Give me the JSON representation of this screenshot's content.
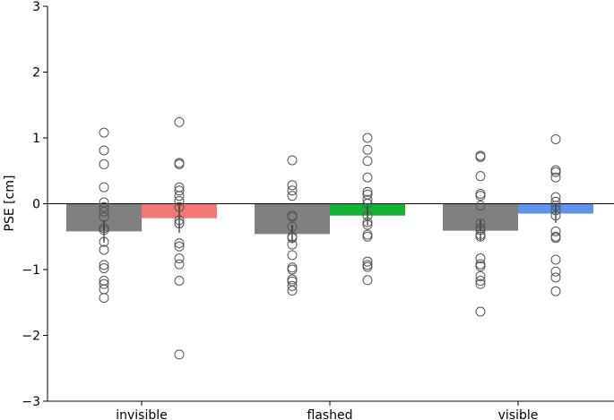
{
  "chart_data": {
    "type": "bar",
    "title": "",
    "xlabel": "",
    "ylabel": "PSE [cm]",
    "ylim": [
      -3,
      3
    ],
    "yticks": [
      -3,
      -2,
      -1,
      0,
      1,
      2,
      3
    ],
    "ytick_labels": [
      "−3",
      "−2",
      "−1",
      "0",
      "1",
      "2",
      "3"
    ],
    "categories": [
      "invisible",
      "flashed",
      "visible"
    ],
    "grid": false,
    "zero_line": true,
    "series": [
      {
        "name": "grey condition",
        "color": "#808080",
        "values": [
          -0.42,
          -0.46,
          -0.41
        ],
        "errors": [
          0.17,
          0.14,
          0.16
        ],
        "points": [
          [
            1.08,
            0.81,
            0.6,
            0.25,
            0.02,
            -0.05,
            -0.12,
            -0.2,
            -0.37,
            -0.4,
            -0.58,
            -0.7,
            -0.93,
            -0.98,
            -1.17,
            -1.22,
            -1.3,
            -1.43
          ],
          [
            0.66,
            0.28,
            0.2,
            0.12,
            -0.18,
            -0.2,
            -0.35,
            -0.5,
            -0.52,
            -0.62,
            -0.78,
            -0.97,
            -1.0,
            -1.15,
            -1.18,
            -1.25,
            -1.32
          ],
          [
            0.73,
            0.71,
            0.42,
            0.15,
            0.12,
            -0.03,
            -0.3,
            -0.37,
            -0.4,
            -0.47,
            -0.5,
            -0.83,
            -0.92,
            -0.95,
            -1.1,
            -1.17,
            -1.22,
            -1.64
          ]
        ]
      },
      {
        "name": "colored condition",
        "color": "",
        "colors": [
          "#f37777",
          "#11b536",
          "#5b93ee"
        ],
        "values": [
          -0.22,
          -0.18,
          -0.15
        ],
        "errors": [
          0.22,
          0.15,
          0.14
        ],
        "points": [
          [
            1.24,
            0.62,
            0.6,
            0.25,
            0.2,
            0.12,
            0.04,
            -0.05,
            -0.25,
            -0.3,
            -0.3,
            -0.6,
            -0.65,
            -0.83,
            -0.92,
            -1.17,
            -2.29
          ],
          [
            1.0,
            0.82,
            0.65,
            0.4,
            0.18,
            0.14,
            0.06,
            0.0,
            -0.18,
            -0.28,
            -0.32,
            -0.47,
            -0.5,
            -0.88,
            -0.93,
            -0.96,
            -1.16
          ],
          [
            0.98,
            0.51,
            0.48,
            0.4,
            0.1,
            0.03,
            -0.03,
            -0.1,
            -0.18,
            -0.42,
            -0.5,
            -0.52,
            -0.85,
            -1.03,
            -1.12,
            -1.33
          ]
        ]
      }
    ]
  }
}
